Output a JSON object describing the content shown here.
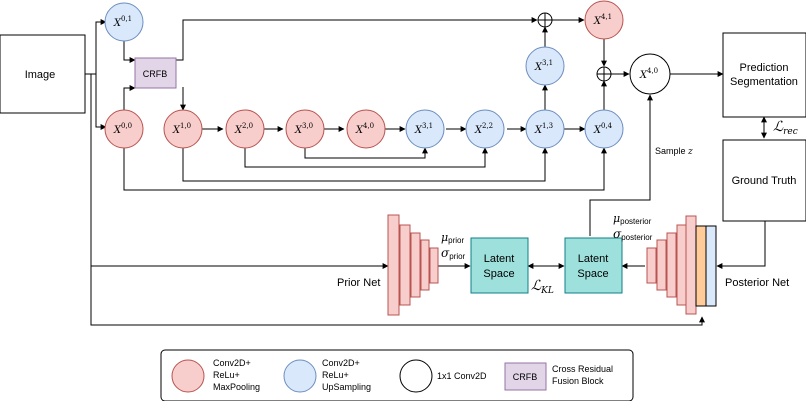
{
  "boxes": {
    "image": "Image",
    "prediction_line1": "Prediction",
    "prediction_line2": "Segmentation",
    "ground_truth": "Ground Truth",
    "crfb": "CRFB",
    "latent_prior_line1": "Latent",
    "latent_prior_line2": "Space",
    "latent_posterior_line1": "Latent",
    "latent_posterior_line2": "Space"
  },
  "nodes": [
    {
      "id": "x01",
      "base": "X",
      "sup": "0,1",
      "type": "upsampling"
    },
    {
      "id": "x00",
      "base": "X",
      "sup": "0,0",
      "type": "conv-pool"
    },
    {
      "id": "x10",
      "base": "X",
      "sup": "1,0",
      "type": "conv-pool"
    },
    {
      "id": "x20",
      "base": "X",
      "sup": "2,0",
      "type": "conv-pool"
    },
    {
      "id": "x30",
      "base": "X",
      "sup": "3,0",
      "type": "conv-pool"
    },
    {
      "id": "x40a",
      "base": "X",
      "sup": "4,0",
      "type": "conv-pool"
    },
    {
      "id": "x31a",
      "base": "X",
      "sup": "3,1",
      "type": "upsampling"
    },
    {
      "id": "x22",
      "base": "X",
      "sup": "2,2",
      "type": "upsampling"
    },
    {
      "id": "x13",
      "base": "X",
      "sup": "1,3",
      "type": "upsampling"
    },
    {
      "id": "x31b",
      "base": "X",
      "sup": "3,1",
      "type": "upsampling"
    },
    {
      "id": "x04",
      "base": "X",
      "sup": "0,4",
      "type": "upsampling"
    },
    {
      "id": "x41",
      "base": "X",
      "sup": "4,1",
      "type": "conv-pool"
    },
    {
      "id": "x40b",
      "base": "X",
      "sup": "4,0",
      "type": "conv1x1"
    }
  ],
  "labels": {
    "prior_net": "Prior Net",
    "posterior_net": "Posterior Net",
    "sample_z": "Sample ",
    "sample_z_var": "z",
    "mu_prior": "μ",
    "mu_prior_sub": "prior",
    "sigma_prior": "σ",
    "sigma_prior_sub": "prior",
    "mu_posterior": "μ",
    "mu_posterior_sub": "posterior",
    "sigma_posterior": "σ",
    "sigma_posterior_sub": "posterior",
    "loss_kl": "ℒ",
    "loss_kl_sub": "KL",
    "loss_rec": "ℒ",
    "loss_rec_sub": "rec"
  },
  "legend": {
    "conv_pool_line1": "Conv2D+",
    "conv_pool_line2": "ReLu+",
    "conv_pool_line3": "MaxPooling",
    "upsampling_line1": "Conv2D+",
    "upsampling_line2": "ReLu+",
    "upsampling_line3": "UpSampling",
    "conv1x1": "1x1 Conv2D",
    "crfb_box": "CRFB",
    "crfb_line1": "Cross Residual",
    "crfb_line2": "Fusion Block"
  },
  "colors": {
    "conv_pool_fill": "#f8cecc",
    "conv_pool_stroke": "#b85450",
    "upsampling_fill": "#dae8fc",
    "upsampling_stroke": "#6c8ebf",
    "crfb_fill": "#e1d5e7",
    "crfb_stroke": "#9673a6",
    "latent_fill": "#9de0dc",
    "latent_stroke": "#0e8088",
    "net_fill": "#f8cecc",
    "net_stroke": "#b85450",
    "posterior_extra1": "#ffcc99",
    "posterior_extra2": "#dae8fc"
  }
}
